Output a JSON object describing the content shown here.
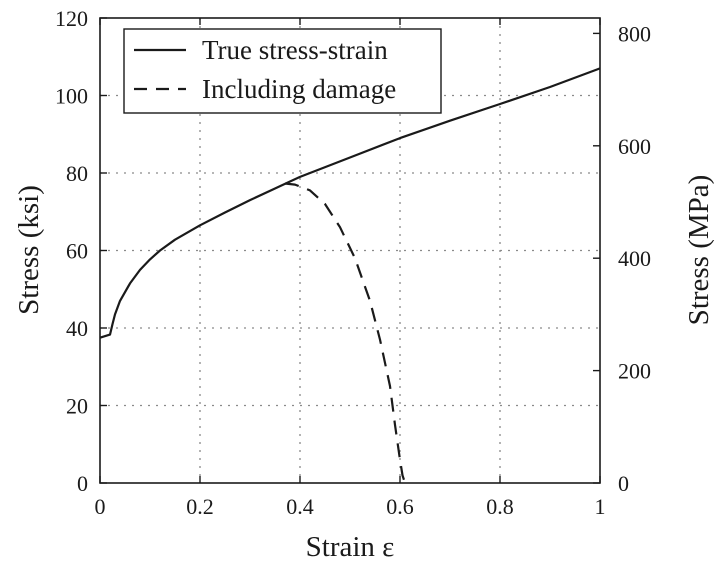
{
  "chart_data": {
    "type": "line",
    "title": "",
    "xlabel": "Strain ε",
    "ylabel": "Stress (ksi)",
    "y2label": "Stress (MPa)",
    "xlim": [
      0,
      1
    ],
    "ylim": [
      0,
      120
    ],
    "y2lim": [
      0,
      827.4
    ],
    "xticks": [
      "0",
      "0.2",
      "0.4",
      "0.6",
      "0.8",
      "1"
    ],
    "yticks": [
      "0",
      "20",
      "40",
      "60",
      "80",
      "100",
      "120"
    ],
    "y2ticks": [
      "0",
      "200",
      "400",
      "600",
      "800"
    ],
    "grid": true,
    "legend": {
      "position": "top-left",
      "entries": [
        "True stress-strain",
        "Including damage"
      ]
    },
    "series": [
      {
        "name": "True stress-strain",
        "style": "solid",
        "x": [
          0,
          0.02,
          0.025,
          0.03,
          0.04,
          0.06,
          0.08,
          0.1,
          0.12,
          0.15,
          0.2,
          0.25,
          0.3,
          0.35,
          0.38,
          0.4,
          0.5,
          0.6,
          0.7,
          0.8,
          0.9,
          1.0
        ],
        "y": [
          37.5,
          38.3,
          41,
          43.5,
          47,
          51.5,
          55,
          57.7,
          60,
          62.8,
          66.5,
          69.8,
          73,
          76,
          77.8,
          79,
          84,
          89,
          93.5,
          97.8,
          102.2,
          107
        ]
      },
      {
        "name": "Including damage",
        "style": "dashed",
        "x": [
          0.37,
          0.39,
          0.42,
          0.45,
          0.48,
          0.51,
          0.54,
          0.56,
          0.58,
          0.59,
          0.6,
          0.605,
          0.61
        ],
        "y": [
          77.3,
          77.0,
          75.5,
          72,
          66,
          58,
          47,
          37,
          25,
          15,
          6,
          2,
          0
        ]
      }
    ]
  }
}
